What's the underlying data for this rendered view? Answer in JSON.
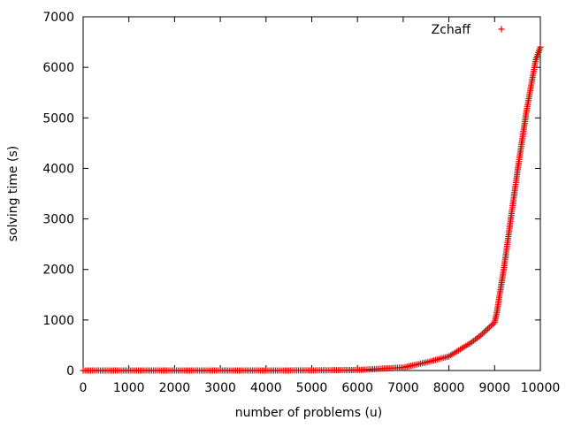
{
  "chart_data": {
    "type": "scatter",
    "xlabel": "number of problems (u)",
    "ylabel": "solving time (s)",
    "xlim": [
      0,
      10000
    ],
    "ylim": [
      0,
      7000
    ],
    "x_ticks": [
      "0",
      "1000",
      "2000",
      "3000",
      "4000",
      "5000",
      "6000",
      "7000",
      "8000",
      "9000",
      "10000"
    ],
    "y_ticks": [
      "0",
      "1000",
      "2000",
      "3000",
      "4000",
      "5000",
      "6000",
      "7000"
    ],
    "grid": false,
    "legend_position": "top-right",
    "marker": "plus",
    "series": [
      {
        "name": "Zchaff",
        "color": "#e60000",
        "x": [
          0,
          1000,
          2000,
          3000,
          4000,
          5000,
          6000,
          6500,
          7000,
          7500,
          8000,
          8500,
          8700,
          9000,
          9050,
          9100,
          9200,
          9300,
          9400,
          9500,
          9600,
          9700,
          9800,
          9900,
          10000
        ],
        "y": [
          0,
          0,
          0,
          0,
          0,
          2,
          10,
          35,
          60,
          160,
          280,
          560,
          700,
          950,
          1150,
          1450,
          2000,
          2650,
          3300,
          3950,
          4550,
          5150,
          5650,
          6150,
          6400
        ]
      }
    ]
  }
}
